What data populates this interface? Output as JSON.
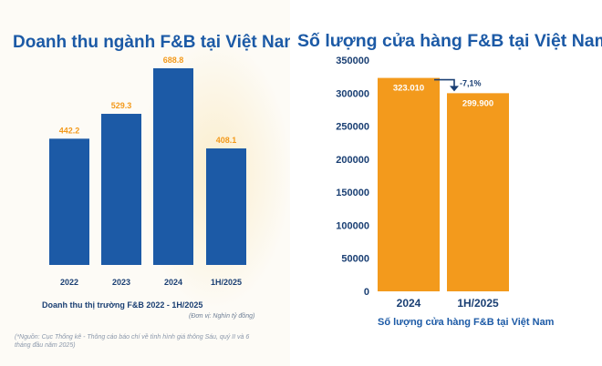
{
  "left_chart": {
    "title": "Doanh thu ngành F&B tại Việt Nam",
    "caption": "Doanh thu thị trường F&B 2022 - 1H/2025",
    "unit_note": "(Đơn vị: Nghìn tỷ đồng)",
    "source_note": "(*Nguồn: Cục Thống kê - Thông cáo báo chí về tình hình giá thông Sáu, quý II và 6 tháng đầu năm 2025)"
  },
  "right_chart": {
    "title": "Số lượng cửa hàng F&B tại Việt Nam",
    "caption": "Số lượng cửa hàng F&B tại Việt Nam",
    "change_label": "-7,1%"
  },
  "colors": {
    "bar_blue": "#1c5aa6",
    "label_orange": "#f39a1c",
    "bar_orange": "#f39a1c",
    "axis_navy": "#1a3f73"
  },
  "chart_data": [
    {
      "type": "bar",
      "title": "Doanh thu ngành F&B tại Việt Nam",
      "xlabel": "Doanh thu thị trường F&B 2022 - 1H/2025",
      "ylabel": "",
      "categories": [
        "2022",
        "2023",
        "2024",
        "1H/2025"
      ],
      "values": [
        442.2,
        529.3,
        688.8,
        408.1
      ],
      "value_labels": [
        "442.2",
        "529.3",
        "688.8",
        "408.1"
      ],
      "ylim": [
        0,
        700
      ],
      "grid": false,
      "legend": "none"
    },
    {
      "type": "bar",
      "title": "Số lượng cửa hàng F&B tại Việt Nam",
      "xlabel": "Số lượng cửa hàng F&B tại Việt Nam",
      "ylabel": "",
      "categories": [
        "2024",
        "1H/2025"
      ],
      "values": [
        323010,
        299900
      ],
      "value_labels": [
        "323.010",
        "299.900"
      ],
      "ylim": [
        0,
        350000
      ],
      "yticks": [
        "350000",
        "300000",
        "250000",
        "200000",
        "150000",
        "100000",
        "50000",
        "0"
      ],
      "grid": false,
      "legend": "none"
    }
  ]
}
